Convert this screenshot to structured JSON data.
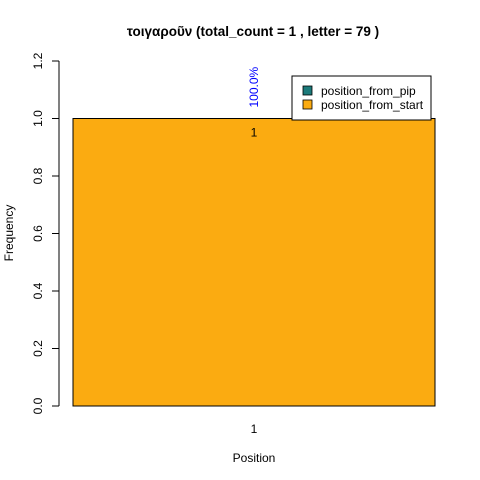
{
  "chart_data": {
    "type": "bar",
    "title": "τοιγαροῦν  (total_count =  1 , letter = 79 )",
    "xlabel": "Position",
    "ylabel": "Frequency",
    "categories": [
      "1"
    ],
    "series": [
      {
        "name": "position_from_pip",
        "values": [
          0
        ],
        "color": "#1B7A7A"
      },
      {
        "name": "position_from_start",
        "values": [
          1.0
        ],
        "color": "#FBAB11"
      }
    ],
    "ylim": [
      0,
      1.2
    ],
    "yticks": [
      0.0,
      0.2,
      0.4,
      0.6,
      0.8,
      1.0,
      1.2
    ],
    "ytick_labels": [
      "0.0",
      "0.2",
      "0.4",
      "0.6",
      "0.8",
      "1.0",
      "1.2"
    ],
    "bar_count_labels": [
      "1"
    ],
    "percent_labels": [
      "100.0%"
    ],
    "percent_label_color": "#0000FF",
    "grid": false,
    "legend_position": "top-right"
  }
}
